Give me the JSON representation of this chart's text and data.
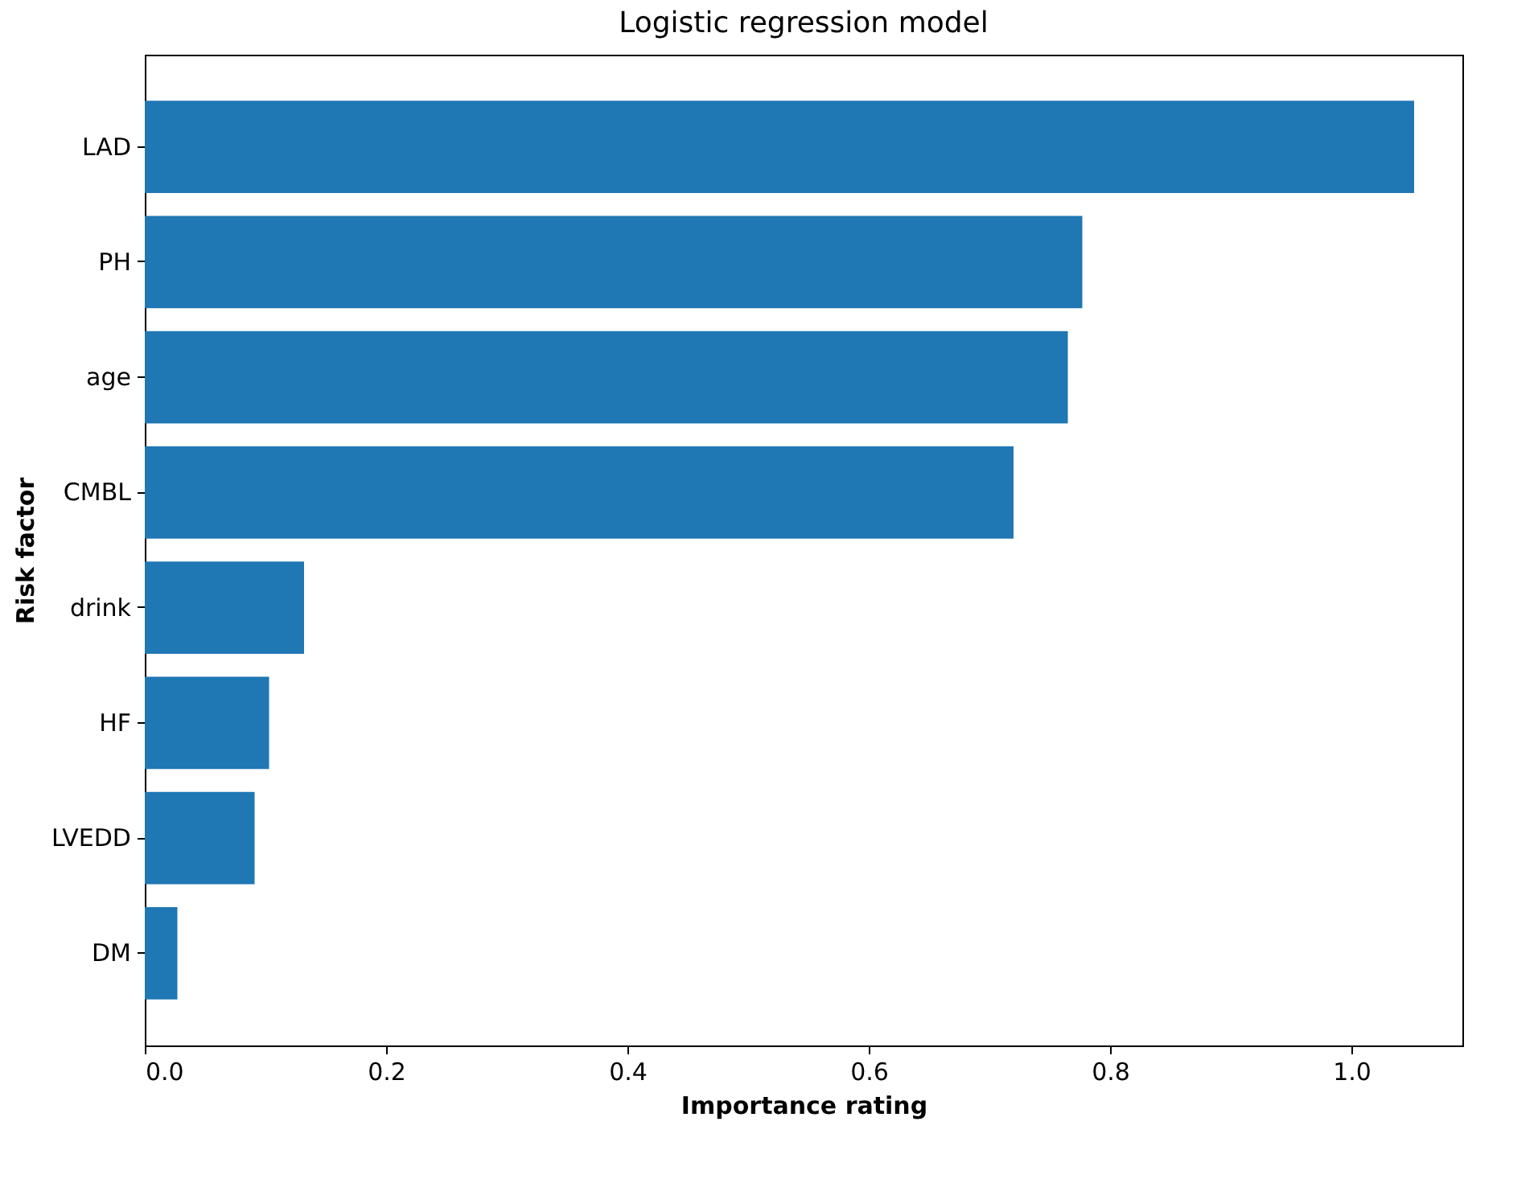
{
  "chart_data": {
    "type": "bar",
    "orientation": "horizontal",
    "title": "Logistic regression model",
    "xlabel": "Importance rating",
    "ylabel": "Risk factor",
    "categories": [
      "LAD",
      "PH",
      "age ",
      "CMBL",
      "drink",
      "HF",
      "LVEDD",
      "DM"
    ],
    "series": [
      {
        "color": "#1f77b4",
        "values": [
          1.052,
          0.777,
          0.765,
          0.72,
          0.132,
          0.103,
          0.091,
          0.027
        ]
      }
    ],
    "xlim": [
      0,
      1.092
    ],
    "xticks": [
      {
        "value": 0,
        "label": "0.0"
      },
      {
        "value": 0.2,
        "label": "0.2"
      },
      {
        "value": 0.4,
        "label": "0.4"
      },
      {
        "value": 0.6,
        "label": "0.6"
      },
      {
        "value": 0.8,
        "label": "0.8"
      },
      {
        "value": 1,
        "label": "1.0"
      }
    ],
    "grid": false,
    "legend": false
  }
}
